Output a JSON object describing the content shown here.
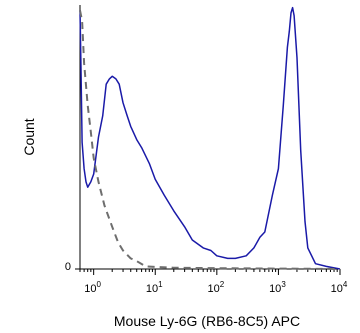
{
  "chart_data": {
    "type": "line",
    "title": "",
    "xlabel": "Mouse Ly-6G (RB6-8C5) APC",
    "ylabel": "Count",
    "x_scale": "log",
    "xlim": [
      0.6,
      10000
    ],
    "ylim": [
      0,
      100
    ],
    "x_ticks": [
      {
        "base": "10",
        "exp": "0",
        "value": 1
      },
      {
        "base": "10",
        "exp": "1",
        "value": 10
      },
      {
        "base": "10",
        "exp": "2",
        "value": 100
      },
      {
        "base": "10",
        "exp": "3",
        "value": 1000
      },
      {
        "base": "10",
        "exp": "4",
        "value": 10000
      }
    ],
    "y_ticks": [
      {
        "label": "0",
        "value": 0
      }
    ],
    "grid": false,
    "legend": "none",
    "series": [
      {
        "style": "solid",
        "color": "#1a1aa8",
        "points": [
          [
            0.6,
            98
          ],
          [
            0.62,
            78
          ],
          [
            0.65,
            48
          ],
          [
            0.7,
            38
          ],
          [
            0.75,
            33
          ],
          [
            0.8,
            31
          ],
          [
            0.9,
            33
          ],
          [
            1.0,
            36
          ],
          [
            1.2,
            50
          ],
          [
            1.4,
            58
          ],
          [
            1.6,
            70
          ],
          [
            1.8,
            72
          ],
          [
            2.0,
            73
          ],
          [
            2.3,
            72
          ],
          [
            2.6,
            70
          ],
          [
            3.0,
            63
          ],
          [
            3.5,
            58
          ],
          [
            4.0,
            54
          ],
          [
            5.0,
            49
          ],
          [
            6.0,
            46
          ],
          [
            8.0,
            40
          ],
          [
            10,
            34
          ],
          [
            14,
            28
          ],
          [
            20,
            22
          ],
          [
            30,
            16
          ],
          [
            40,
            11
          ],
          [
            60,
            8
          ],
          [
            80,
            7
          ],
          [
            100,
            5
          ],
          [
            150,
            4
          ],
          [
            200,
            4
          ],
          [
            300,
            5
          ],
          [
            400,
            8
          ],
          [
            500,
            12
          ],
          [
            600,
            14
          ],
          [
            800,
            28
          ],
          [
            1000,
            38
          ],
          [
            1200,
            62
          ],
          [
            1400,
            84
          ],
          [
            1500,
            90
          ],
          [
            1600,
            97
          ],
          [
            1700,
            99
          ],
          [
            1800,
            96
          ],
          [
            2000,
            80
          ],
          [
            2300,
            45
          ],
          [
            2700,
            18
          ],
          [
            3000,
            8
          ],
          [
            4000,
            2
          ],
          [
            6000,
            1
          ],
          [
            10000,
            0
          ]
        ]
      },
      {
        "style": "dashed",
        "color": "#6e6e6e",
        "points": [
          [
            0.6,
            98
          ],
          [
            0.65,
            94
          ],
          [
            0.7,
            78
          ],
          [
            0.8,
            62
          ],
          [
            0.9,
            52
          ],
          [
            1.0,
            42
          ],
          [
            1.2,
            33
          ],
          [
            1.5,
            24
          ],
          [
            2.0,
            16
          ],
          [
            2.5,
            10
          ],
          [
            3.0,
            7
          ],
          [
            4.0,
            4
          ],
          [
            5.0,
            3
          ],
          [
            7.0,
            1
          ],
          [
            10,
            0.8
          ],
          [
            20,
            0.5
          ],
          [
            100,
            0.3
          ],
          [
            10000,
            0
          ]
        ]
      }
    ]
  }
}
